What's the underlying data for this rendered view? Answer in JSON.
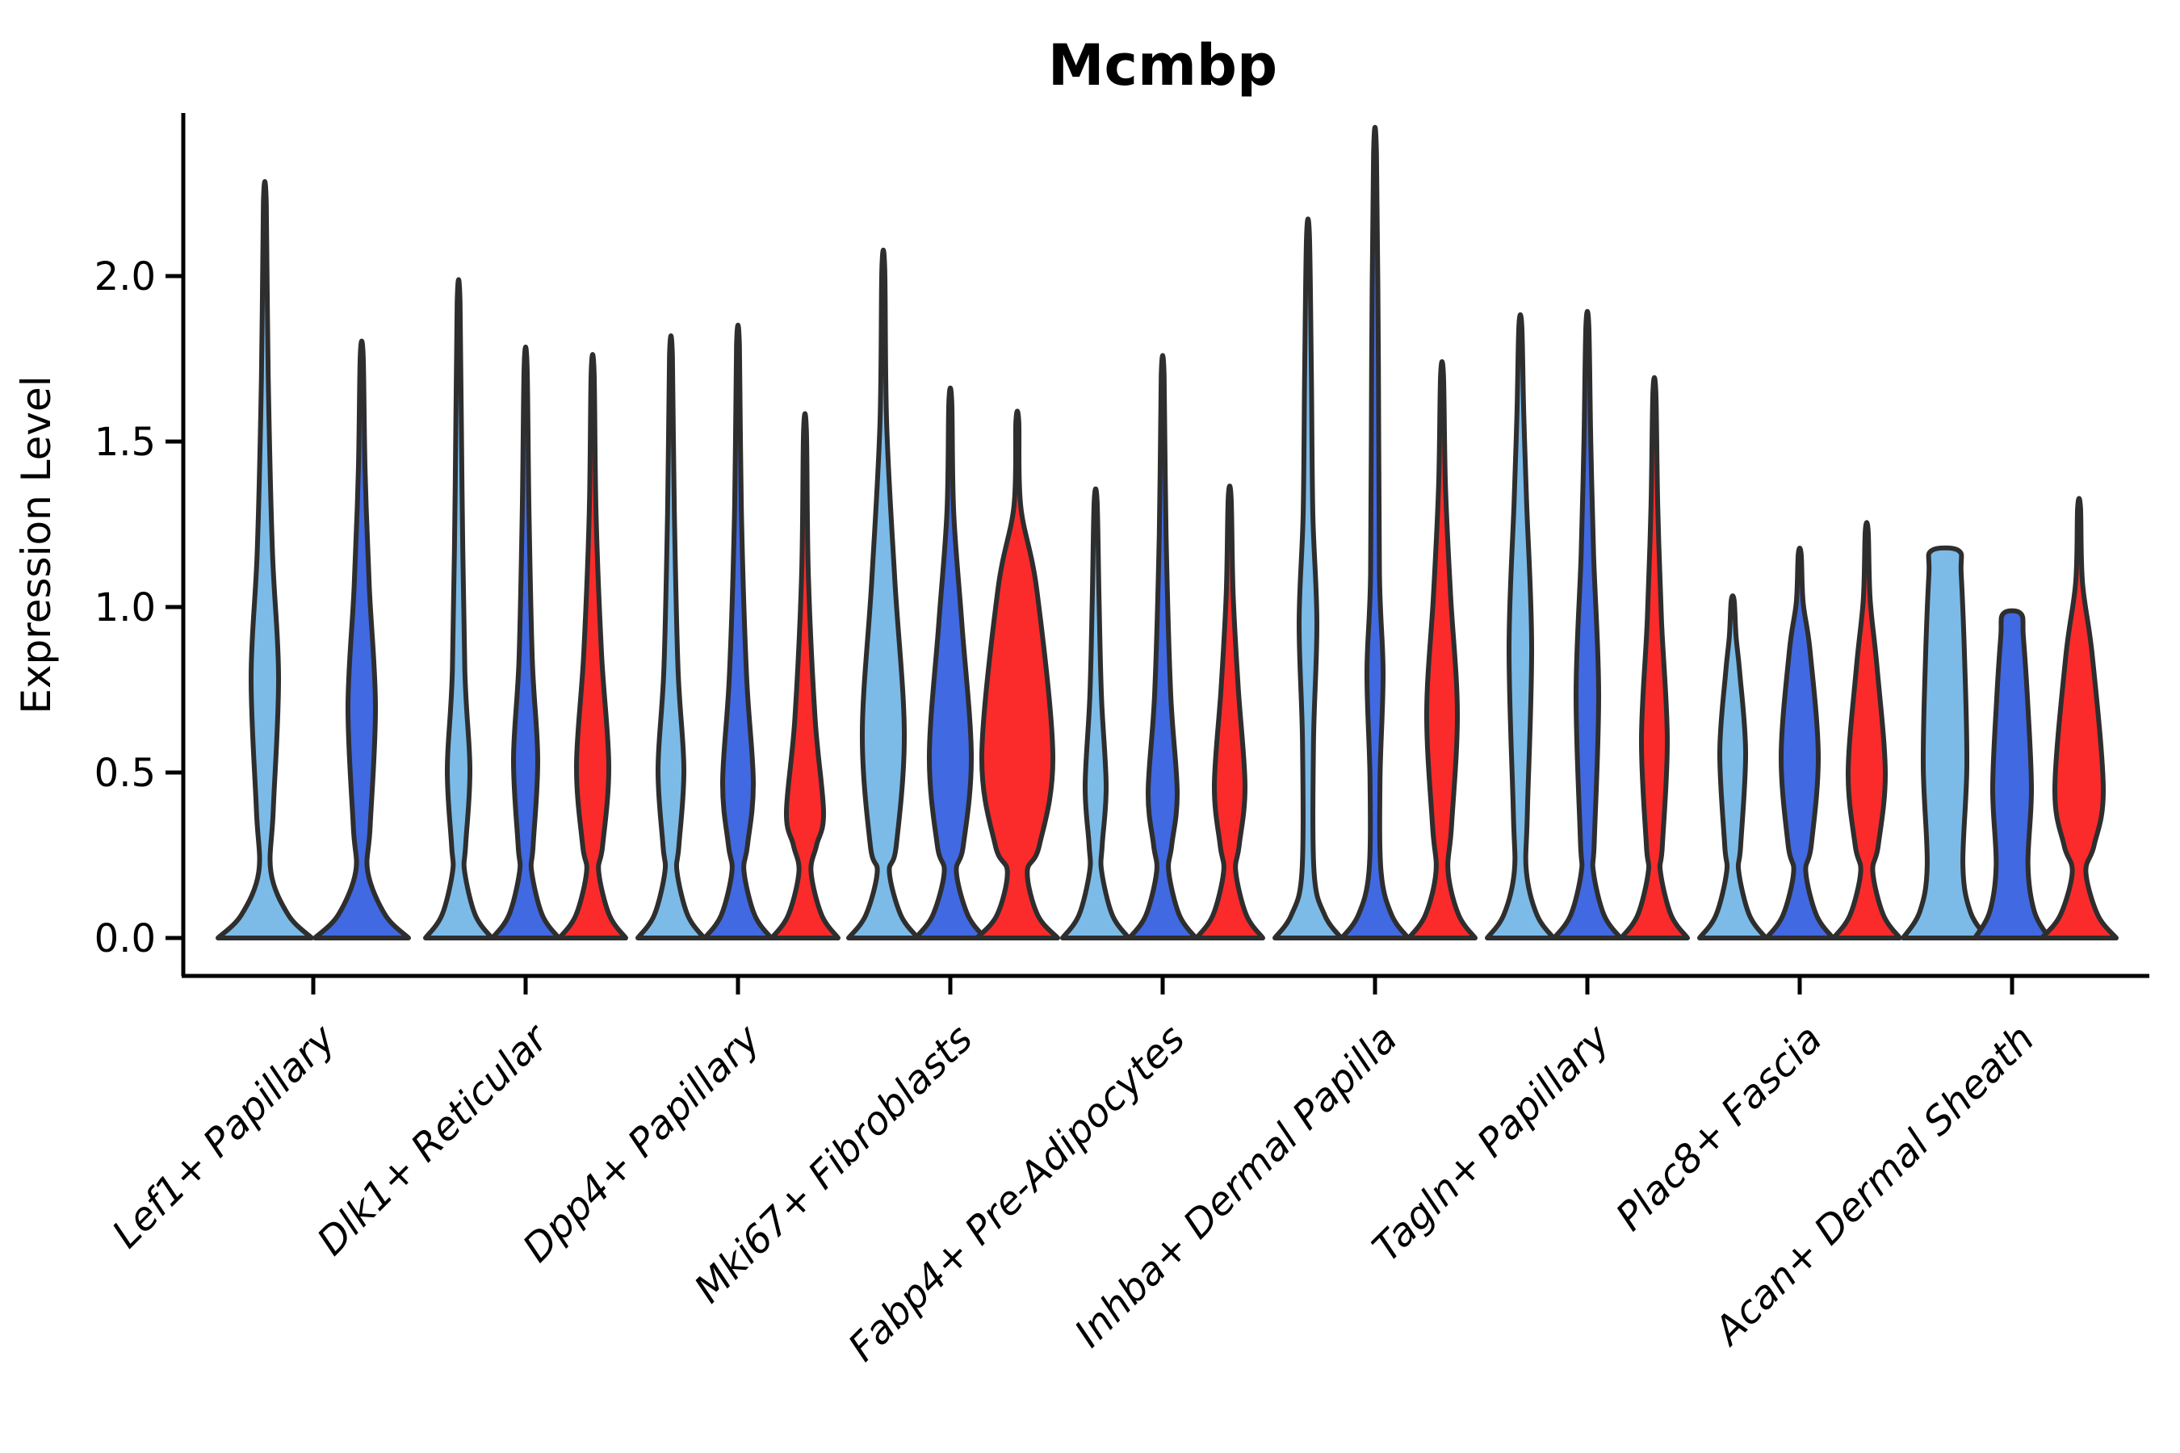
{
  "title": "Mcmbp",
  "ylabel": "Expression Level",
  "colors": {
    "light_blue": "#7CBBE8",
    "dark_blue": "#4169E1",
    "red": "#FB2B2B",
    "outline": "#2E2E2E",
    "axis": "#000000",
    "background": "#FFFFFF"
  },
  "chart_data": {
    "type": "violin",
    "title": "Mcmbp",
    "xlabel": "",
    "ylabel": "Expression Level",
    "ylim": [
      0,
      2.49
    ],
    "grid": false,
    "legend": "none",
    "y_ticks": [
      {
        "label": "0.0",
        "value": 0
      },
      {
        "label": "0.5",
        "value": 0.5
      },
      {
        "label": "1.0",
        "value": 1
      },
      {
        "label": "1.5",
        "value": 1.5
      },
      {
        "label": "2.0",
        "value": 2
      }
    ],
    "series_colors": [
      {
        "name": "light-blue",
        "hex": "#7CBBE8"
      },
      {
        "name": "dark-blue",
        "hex": "#4169E1"
      },
      {
        "name": "red",
        "hex": "#FB2B2B"
      }
    ],
    "outline_color": "#2E2E2E",
    "categories": [
      "Lef1+ Papillary",
      "Dlk1+ Reticular",
      "Dpp4+ Papillary",
      "Mki67+ Fibroblasts",
      "Fabp4+ Pre-Adipocytes",
      "Inhba+ Dermal Papilla",
      "Tagln+ Papillary",
      "Plac8+ Fascia",
      "Acan+ Dermal Sheath"
    ],
    "groups": [
      {
        "category": "Lef1+ Papillary",
        "violins": [
          {
            "series": 0,
            "max": 2.22,
            "belly": 0.79,
            "bw": 17,
            "st": 0.38,
            "sb": 0.4,
            "base": 58
          },
          {
            "series": 1,
            "max": 1.76,
            "belly": 0.7,
            "bw": 17,
            "st": 0.36,
            "sb": 0.36,
            "base": 58
          }
        ]
      },
      {
        "category": "Dlk1+ Reticular",
        "violins": [
          {
            "series": 0,
            "max": 1.92,
            "belly": 0.51,
            "bw": 14,
            "st": 0.3,
            "sb": 0.27,
            "base": 41
          },
          {
            "series": 1,
            "max": 1.73,
            "belly": 0.54,
            "bw": 15,
            "st": 0.3,
            "sb": 0.29,
            "base": 41
          },
          {
            "series": 2,
            "max": 1.71,
            "belly": 0.52,
            "bw": 20,
            "st": 0.34,
            "sb": 0.29,
            "base": 41
          }
        ]
      },
      {
        "category": "Dpp4+ Papillary",
        "violins": [
          {
            "series": 0,
            "max": 1.76,
            "belly": 0.51,
            "bw": 16,
            "st": 0.3,
            "sb": 0.27,
            "base": 41
          },
          {
            "series": 1,
            "max": 1.79,
            "belly": 0.47,
            "bw": 19,
            "st": 0.33,
            "sb": 0.25,
            "base": 41
          },
          {
            "series": 2,
            "max": 1.53,
            "belly": 0.38,
            "bw": 23,
            "st": 0.28,
            "sb": 0.18,
            "base": 41
          }
        ]
      },
      {
        "category": "Mki67+ Fibroblasts",
        "violins": [
          {
            "series": 0,
            "max": 2.02,
            "belly": 0.62,
            "bw": 26,
            "st": 0.46,
            "sb": 0.36,
            "base": 43
          },
          {
            "series": 1,
            "max": 1.62,
            "belly": 0.55,
            "bw": 26,
            "st": 0.4,
            "sb": 0.31,
            "base": 43
          },
          {
            "series": 2,
            "max": 1.56,
            "belly": 0.55,
            "bw": 44,
            "st": 0.5,
            "sb": 0.34,
            "base": 50
          }
        ]
      },
      {
        "category": "Fabp4+ Pre-Adipocytes",
        "violins": [
          {
            "series": 0,
            "max": 1.32,
            "belly": 0.46,
            "bw": 13,
            "st": 0.27,
            "sb": 0.24,
            "base": 41
          },
          {
            "series": 1,
            "max": 1.7,
            "belly": 0.44,
            "bw": 18,
            "st": 0.3,
            "sb": 0.22,
            "base": 41
          },
          {
            "series": 2,
            "max": 1.33,
            "belly": 0.46,
            "bw": 19,
            "st": 0.3,
            "sb": 0.24,
            "base": 41
          }
        ]
      },
      {
        "category": "Inhba+ Dermal Papilla",
        "violins": [
          {
            "series": 0,
            "max": 2.12,
            "belly": 0.95,
            "bw": 11,
            "st": 0.33,
            "sb": 0.36,
            "base": 41
          },
          {
            "series": 1,
            "max": 2.37,
            "belly": 0.8,
            "bw": 10,
            "st": 0.3,
            "sb": 0.32,
            "base": 41
          },
          {
            "series": 2,
            "max": 1.7,
            "belly": 0.68,
            "bw": 19,
            "st": 0.36,
            "sb": 0.34,
            "base": 41
          }
        ]
      },
      {
        "category": "Tagln+ Papillary",
        "violins": [
          {
            "series": 0,
            "max": 1.85,
            "belly": 0.88,
            "bw": 14,
            "st": 0.44,
            "sb": 0.5,
            "base": 41
          },
          {
            "series": 1,
            "max": 1.85,
            "belly": 0.74,
            "bw": 14,
            "st": 0.42,
            "sb": 0.44,
            "base": 41
          },
          {
            "series": 2,
            "max": 1.65,
            "belly": 0.6,
            "bw": 16,
            "st": 0.36,
            "sb": 0.34,
            "base": 41
          }
        ]
      },
      {
        "category": "Plac8+ Fascia",
        "violins": [
          {
            "series": 0,
            "max": 1.02,
            "belly": 0.56,
            "bw": 16,
            "st": 0.24,
            "sb": 0.28,
            "base": 41
          },
          {
            "series": 1,
            "max": 1.16,
            "belly": 0.55,
            "bw": 23,
            "st": 0.32,
            "sb": 0.27,
            "base": 41
          },
          {
            "series": 2,
            "max": 1.23,
            "belly": 0.5,
            "bw": 23,
            "st": 0.32,
            "sb": 0.26,
            "base": 41
          }
        ]
      },
      {
        "category": "Acan+ Dermal Sheath",
        "violins": [
          {
            "series": 0,
            "max": 1.17,
            "belly": 0.52,
            "bw": 27,
            "flat": true,
            "topw": 17,
            "base": 52
          },
          {
            "series": 1,
            "max": 0.98,
            "belly": 0.45,
            "bw": 24,
            "flat": true,
            "topw": 11,
            "base": 46
          },
          {
            "series": 2,
            "max": 1.3,
            "belly": 0.45,
            "bw": 30,
            "st": 0.4,
            "sb": 0.21,
            "base": 46
          }
        ]
      }
    ]
  }
}
